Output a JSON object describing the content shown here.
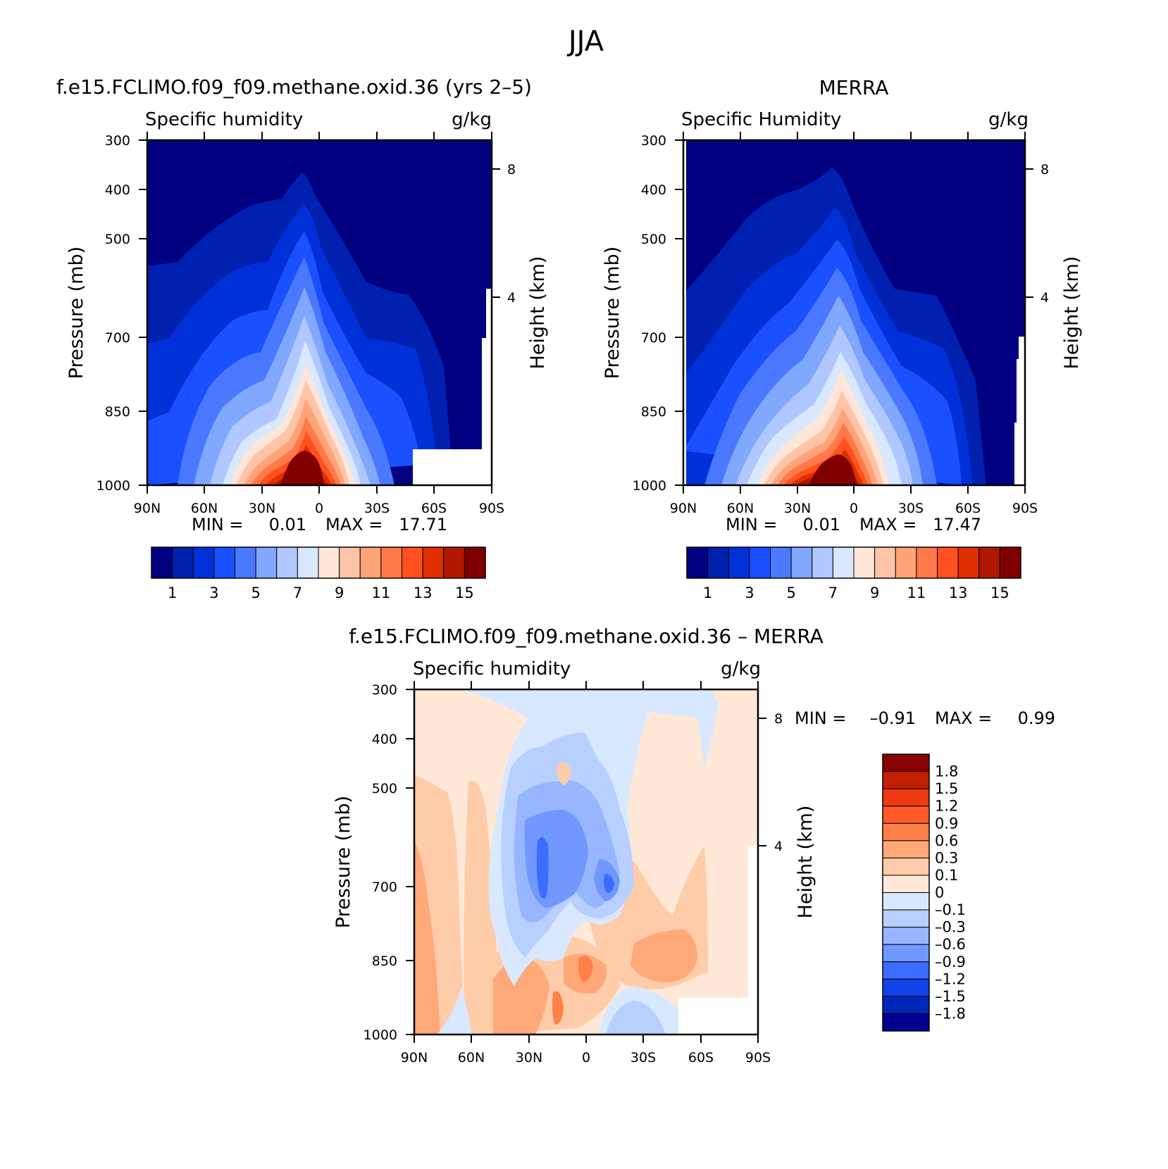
{
  "figure_title": "JJA",
  "chart_data": [
    {
      "type": "heatmap",
      "title": "f.e15.FCLIMO.f09_f09.methane.oxid.36 (yrs 2–5)",
      "left_label": "Specific humidity",
      "right_label": "g/kg",
      "xlabel": "",
      "ylabel": "Pressure (mb)",
      "ylabel_right": "Height (km)",
      "x_ticks": [
        "90N",
        "60N",
        "30N",
        "0",
        "30S",
        "60S",
        "90S"
      ],
      "y_ticks": [
        "300",
        "400",
        "500",
        "700",
        "850",
        "1000"
      ],
      "y_right_ticks": [
        "8",
        "4"
      ],
      "min_label": "MIN =",
      "min_value": "0.01",
      "max_label": "MAX =",
      "max_value": "17.71",
      "ylim": [
        1000,
        300
      ],
      "xlim": [
        90,
        -90
      ],
      "colorbar_ticks": [
        "1",
        "3",
        "5",
        "7",
        "9",
        "11",
        "13",
        "15"
      ],
      "colorbar_colors": [
        "#000080",
        "#0020b0",
        "#0030d8",
        "#1a50ff",
        "#4a78ff",
        "#80a8ff",
        "#b0c8ff",
        "#d8e8ff",
        "#ffe6d8",
        "#ffc4a8",
        "#ffa478",
        "#ff7a48",
        "#ff5020",
        "#e03000",
        "#b01800",
        "#800000"
      ],
      "peak_center_lat": 10,
      "peak_value": 17.71
    },
    {
      "type": "heatmap",
      "title": "MERRA",
      "left_label": "Specific Humidity",
      "right_label": "g/kg",
      "xlabel": "",
      "ylabel": "Pressure (mb)",
      "ylabel_right": "Height (km)",
      "x_ticks": [
        "90N",
        "60N",
        "30N",
        "0",
        "30S",
        "60S",
        "90S"
      ],
      "y_ticks": [
        "300",
        "400",
        "500",
        "700",
        "850",
        "1000"
      ],
      "y_right_ticks": [
        "8",
        "4"
      ],
      "min_label": "MIN =",
      "min_value": "0.01",
      "max_label": "MAX =",
      "max_value": "17.47",
      "ylim": [
        1000,
        300
      ],
      "xlim": [
        90,
        -90
      ],
      "colorbar_ticks": [
        "1",
        "3",
        "5",
        "7",
        "9",
        "11",
        "13",
        "15"
      ],
      "colorbar_colors": [
        "#000080",
        "#0020b0",
        "#0030d8",
        "#1a50ff",
        "#4a78ff",
        "#80a8ff",
        "#b0c8ff",
        "#d8e8ff",
        "#ffe6d8",
        "#ffc4a8",
        "#ffa478",
        "#ff7a48",
        "#ff5020",
        "#e03000",
        "#b01800",
        "#800000"
      ],
      "peak_center_lat": 10,
      "peak_value": 17.47
    },
    {
      "type": "heatmap",
      "title": "f.e15.FCLIMO.f09_f09.methane.oxid.36 – MERRA",
      "left_label": "Specific humidity",
      "right_label": "g/kg",
      "xlabel": "",
      "ylabel": "Pressure (mb)",
      "ylabel_right": "Height (km)",
      "x_ticks": [
        "90N",
        "60N",
        "30N",
        "0",
        "30S",
        "60S",
        "90S"
      ],
      "y_ticks": [
        "300",
        "400",
        "500",
        "700",
        "850",
        "1000"
      ],
      "y_right_ticks": [
        "8",
        "4"
      ],
      "min_label": "MIN =",
      "min_value": "–0.91",
      "max_label": "MAX =",
      "max_value": "0.99",
      "ylim": [
        1000,
        300
      ],
      "xlim": [
        90,
        -90
      ],
      "colorbar_ticks": [
        "1.8",
        "1.5",
        "1.2",
        "0.9",
        "0.6",
        "0.3",
        "0.1",
        "0",
        "–0.1",
        "–0.3",
        "–0.6",
        "–0.9",
        "–1.2",
        "–1.5",
        "–1.8"
      ],
      "colorbar_colors": [
        "#8b0000",
        "#c02000",
        "#ee3a10",
        "#ff5a28",
        "#ff8048",
        "#ffa878",
        "#ffccaa",
        "#ffe8d8",
        "#d8e8ff",
        "#b8d0ff",
        "#98b6ff",
        "#7098ff",
        "#3a6cff",
        "#1044e8",
        "#0028b8",
        "#000090"
      ]
    }
  ]
}
